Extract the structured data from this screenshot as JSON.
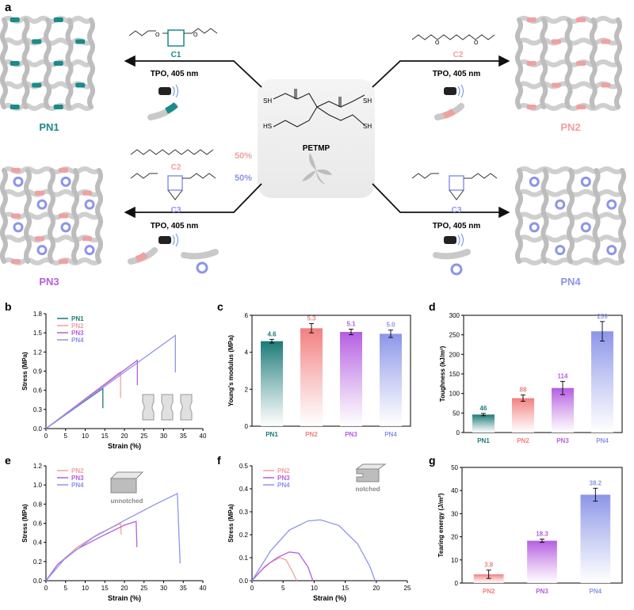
{
  "panels": {
    "a": "a",
    "b": "b",
    "c": "c",
    "d": "d",
    "e": "e",
    "f": "f",
    "g": "g"
  },
  "schematic": {
    "center_label": "PETMP",
    "sh": "SH",
    "hs": "HS",
    "arrow_label": "TPO, 405 nm",
    "networks": {
      "pn1": "PN1",
      "pn2": "PN2",
      "pn3": "PN3",
      "pn4": "PN4"
    },
    "crosslinkers": {
      "c1": "C1",
      "c2": "C2",
      "c3": "C3"
    },
    "ratio_c2": "50%",
    "ratio_c3": "50%",
    "o": "O",
    "colors": {
      "pn1": "#1b8a8a",
      "pn2": "#f0a0a0",
      "pn3": "#b45ee0",
      "pn4": "#8c95e8"
    }
  },
  "chart_data": [
    {
      "id": "b",
      "type": "line",
      "title": "",
      "xlabel": "Strain (%)",
      "ylabel": "Stress (MPa)",
      "xlim": [
        0,
        40
      ],
      "ylim": [
        0,
        1.8
      ],
      "xticks": [
        "0",
        "5",
        "10",
        "15",
        "20",
        "25",
        "30",
        "35",
        "40"
      ],
      "yticks": [
        "0.0",
        "0.3",
        "0.6",
        "0.9",
        "1.2",
        "1.5",
        "1.8"
      ],
      "series": [
        {
          "name": "PN1",
          "color": "#1b7a78",
          "x": [
            0,
            14.5,
            14.5
          ],
          "y": [
            0,
            0.63,
            0.32
          ]
        },
        {
          "name": "PN2",
          "color": "#f2a0a0",
          "x": [
            0,
            19,
            19
          ],
          "y": [
            0,
            0.89,
            0.48
          ]
        },
        {
          "name": "PN3",
          "color": "#b45ee0",
          "x": [
            0,
            23.3,
            23.3
          ],
          "y": [
            0,
            1.07,
            0.68
          ]
        },
        {
          "name": "PN4",
          "color": "#8c95e8",
          "x": [
            0,
            33,
            33
          ],
          "y": [
            0,
            1.46,
            0.88
          ]
        }
      ]
    },
    {
      "id": "c",
      "type": "bar",
      "ylabel": "Young's modulus (MPa)",
      "ylim": [
        0,
        6
      ],
      "yticks": [
        "0",
        "2",
        "4",
        "6"
      ],
      "categories": [
        "PN1",
        "PN2",
        "PN3",
        "PN4"
      ],
      "values": [
        4.6,
        5.3,
        5.1,
        5.0
      ],
      "value_labels": [
        "4.6",
        "5.3",
        "5.1",
        "5.0"
      ],
      "errors": [
        0.1,
        0.25,
        0.15,
        0.2
      ],
      "colors": [
        "#1b7a78",
        "#f27f7f",
        "#b45ee0",
        "#8c95e8"
      ]
    },
    {
      "id": "d",
      "type": "bar",
      "ylabel": "Toughness (kJ/m³)",
      "ylim": [
        0,
        300
      ],
      "yticks": [
        "0",
        "50",
        "100",
        "150",
        "200",
        "250",
        "300"
      ],
      "categories": [
        "PN1",
        "PN2",
        "PN3",
        "PN4"
      ],
      "values": [
        46,
        88,
        114,
        259
      ],
      "value_labels": [
        "46",
        "88",
        "114",
        "259"
      ],
      "errors": [
        3,
        8,
        17,
        25
      ],
      "colors": [
        "#1b7a78",
        "#f27f7f",
        "#b45ee0",
        "#8c95e8"
      ]
    },
    {
      "id": "e",
      "type": "line",
      "annotation": "unnotched",
      "xlabel": "Strain (%)",
      "ylabel": "Stress (MPa)",
      "xlim": [
        0,
        40
      ],
      "ylim": [
        0,
        1.2
      ],
      "xticks": [
        "0",
        "5",
        "10",
        "15",
        "20",
        "25",
        "30",
        "35",
        "40"
      ],
      "yticks": [
        "0.0",
        "0.2",
        "0.4",
        "0.6",
        "0.8",
        "1.0",
        "1.2"
      ],
      "series": [
        {
          "name": "PN2",
          "color": "#f2a0a0",
          "x": [
            0,
            3,
            8,
            13,
            19,
            19.2
          ],
          "y": [
            0,
            0.17,
            0.35,
            0.48,
            0.6,
            0.48
          ]
        },
        {
          "name": "PN3",
          "color": "#b45ee0",
          "x": [
            0,
            3,
            8,
            14,
            20,
            23,
            23.2
          ],
          "y": [
            0,
            0.17,
            0.33,
            0.46,
            0.58,
            0.62,
            0.35
          ]
        },
        {
          "name": "PN4",
          "color": "#8c95e8",
          "x": [
            0,
            5,
            12,
            20,
            28,
            33.5,
            34.2
          ],
          "y": [
            0,
            0.24,
            0.45,
            0.63,
            0.8,
            0.91,
            0.18
          ]
        }
      ]
    },
    {
      "id": "f",
      "type": "line",
      "annotation": "notched",
      "xlabel": "Strain (%)",
      "ylabel": "Stress (MPa)",
      "xlim": [
        0,
        25
      ],
      "ylim": [
        0,
        0.5
      ],
      "xticks": [
        "0",
        "5",
        "10",
        "15",
        "20",
        "25"
      ],
      "yticks": [
        "0.0",
        "0.1",
        "0.2",
        "0.3",
        "0.4",
        "0.5"
      ],
      "series": [
        {
          "name": "PN2",
          "color": "#f2a0a0",
          "x": [
            0,
            1.5,
            3,
            4.5,
            5.5,
            6.5,
            7.2
          ],
          "y": [
            0,
            0.045,
            0.08,
            0.1,
            0.09,
            0.04,
            0
          ]
        },
        {
          "name": "PN3",
          "color": "#b45ee0",
          "x": [
            0,
            2,
            4,
            6,
            7.5,
            9,
            9.8
          ],
          "y": [
            0,
            0.06,
            0.1,
            0.125,
            0.12,
            0.06,
            0
          ]
        },
        {
          "name": "PN4",
          "color": "#8c95e8",
          "x": [
            0,
            3,
            6,
            9,
            11,
            14,
            17,
            19,
            19.8
          ],
          "y": [
            0,
            0.13,
            0.22,
            0.26,
            0.265,
            0.24,
            0.16,
            0.06,
            0
          ]
        }
      ]
    },
    {
      "id": "g",
      "type": "bar",
      "ylabel": "Tearing energy (J/m²)",
      "ylim": [
        0,
        50
      ],
      "yticks": [
        "0",
        "10",
        "20",
        "30",
        "40",
        "50"
      ],
      "categories": [
        "PN2",
        "PN3",
        "PN4"
      ],
      "values": [
        3.8,
        18.3,
        38.2
      ],
      "value_labels": [
        "3.8",
        "18.3",
        "38.2"
      ],
      "errors": [
        1.8,
        0.7,
        2.8
      ],
      "colors": [
        "#f27f7f",
        "#b45ee0",
        "#8c95e8"
      ]
    }
  ]
}
